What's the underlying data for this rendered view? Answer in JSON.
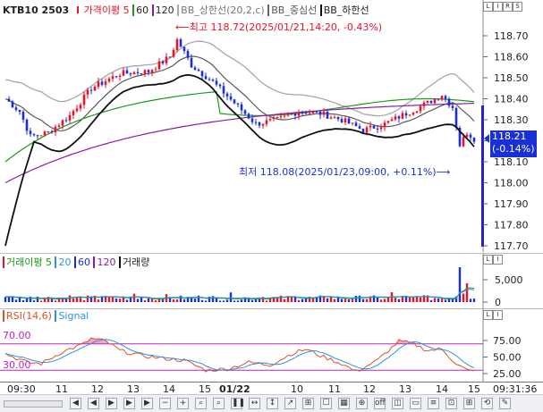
{
  "price_panel": {
    "legend": {
      "symbol": "KTB10 2503",
      "ma_label": "가격이평 5",
      "ma60": "60",
      "ma120": "120",
      "bb_upper": "BB_상한선(20,2,c)",
      "bb_mid": "BB_중심선",
      "bb_lower": "BB_하한선"
    },
    "high_annotation": "최고 118.72(2025/01/21,14:20, -0.43%)",
    "low_annotation": "최저 118.08(2025/01/23,09:00, +0.11%)",
    "current_price": "118.21",
    "current_change": "(-0.14%)",
    "y_ticks": [
      "118.70",
      "118.60",
      "118.50",
      "118.40",
      "118.30",
      "118.20",
      "118.10",
      "118.00",
      "117.90",
      "117.80",
      "117.70"
    ],
    "ylim": [
      117.7,
      118.75
    ]
  },
  "volume_panel": {
    "legend": {
      "ma_label": "거래이평 5",
      "v20": "20",
      "v60": "60",
      "v120": "120",
      "vol": "거래량"
    },
    "y_ticks": [
      "5,000",
      "0"
    ]
  },
  "rsi_panel": {
    "legend": {
      "rsi": "RSI(14,6)",
      "signal": "Signal"
    },
    "level_labels": [
      "70.00",
      "30.00"
    ],
    "y_ticks": [
      "75.00",
      "50.00",
      "25.00"
    ]
  },
  "x_axis": {
    "labels": [
      "09:30",
      "11",
      "12",
      "13",
      "14",
      "15",
      "01/22",
      "10",
      "11",
      "12",
      "13",
      "14",
      "15"
    ],
    "clock": "09:31:36"
  },
  "toolbar": {
    "buttons": [
      "◀",
      "◀",
      "▶",
      "▶",
      "▶",
      "−",
      "+",
      "⌕",
      "⌕",
      "❚❚",
      "↔",
      "↕",
      "↗",
      "⊞",
      "☐",
      "▦",
      "⊕",
      "off",
      "◫",
      "▭",
      "≡",
      "⊡",
      "⊞",
      "⟲",
      "✎"
    ]
  },
  "panel_tags": [
    "L",
    "I",
    "R",
    "S"
  ],
  "colors": {
    "up": "#e8122b",
    "down": "#1b2fd6",
    "bb_band": "#a8a8a8",
    "bb_mid": "#5a5a5a",
    "ma5_line": "#111111",
    "ma60": "#1a9a1a",
    "ma120": "#8a1aa6",
    "price_axis_bar": "#2222cc",
    "rsi": "#e05020",
    "signal": "#2f8fe8",
    "level": "#c020c0"
  },
  "icons": {
    "toolbar": "chart-toolbar-icons",
    "panel_controls": "panel-control-icons"
  }
}
